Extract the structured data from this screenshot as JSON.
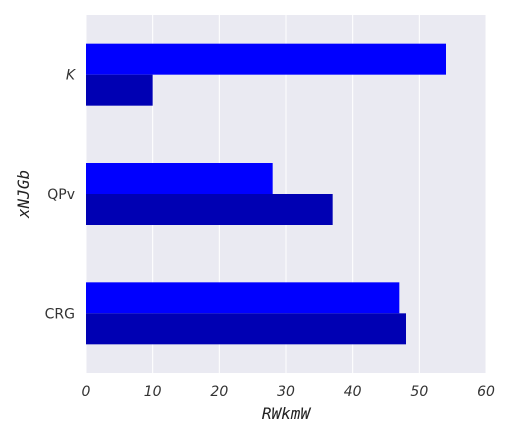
{
  "chart_data": {
    "type": "bar",
    "orientation": "horizontal",
    "categories": [
      "K",
      "QPv",
      "CRG"
    ],
    "category_styles": [
      "italic",
      "normal",
      "normal"
    ],
    "series": [
      {
        "values": [
          54,
          28,
          47
        ],
        "color": "#0000ff"
      },
      {
        "values": [
          10,
          37,
          48
        ],
        "color": "#0000b3"
      }
    ],
    "xlabel": "RWkmW",
    "ylabel": "xNJGb",
    "xlim": [
      0,
      60
    ],
    "xticks": [
      0,
      10,
      20,
      30,
      40,
      50,
      60
    ],
    "grid": true,
    "background": "#eaeaf2",
    "legend": "none"
  }
}
